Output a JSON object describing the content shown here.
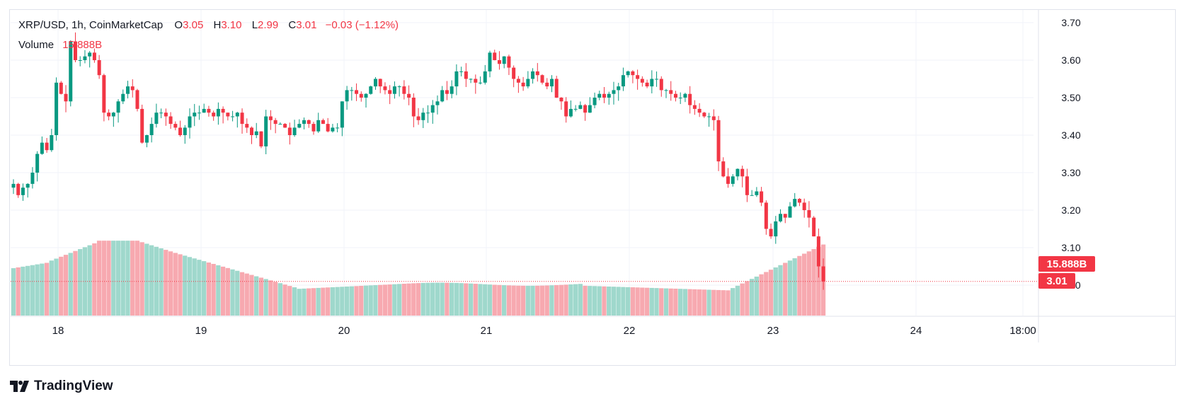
{
  "legend": {
    "symbol_line": "XRP/USD, 1h, CoinMarketCap",
    "open_key": "O",
    "open": "3.05",
    "high_key": "H",
    "high": "3.10",
    "low_key": "L",
    "low": "2.99",
    "close_key": "C",
    "close": "3.01",
    "change": "−0.03 (−1.12%)",
    "volume_label": "Volume",
    "volume_value": "15.888B"
  },
  "price_tag": {
    "volume": "15.888B",
    "price": "3.01"
  },
  "footer": {
    "brand": "TradingView"
  },
  "colors": {
    "up": "#089981",
    "down": "#f23645",
    "up_vol": "#9fd8cc",
    "down_vol": "#f7a9b0",
    "grid": "#f0f3fa"
  },
  "chart_data": {
    "type": "candlestick",
    "interval": "1h",
    "symbol": "XRP/USD",
    "y_ticks": [
      "3.70",
      "3.60",
      "3.50",
      "3.40",
      "3.30",
      "3.20",
      "3.10",
      "3.00"
    ],
    "x_ticks": [
      "18",
      "19",
      "20",
      "21",
      "22",
      "23",
      "24",
      "18:00"
    ],
    "ylim": [
      2.97,
      3.72
    ],
    "closes": [
      3.27,
      3.24,
      3.26,
      3.27,
      3.3,
      3.35,
      3.38,
      3.36,
      3.4,
      3.54,
      3.51,
      3.49,
      3.65,
      3.6,
      3.6,
      3.61,
      3.62,
      3.6,
      3.56,
      3.46,
      3.45,
      3.46,
      3.49,
      3.51,
      3.53,
      3.52,
      3.47,
      3.38,
      3.4,
      3.43,
      3.46,
      3.46,
      3.45,
      3.43,
      3.42,
      3.4,
      3.42,
      3.45,
      3.46,
      3.46,
      3.47,
      3.46,
      3.45,
      3.47,
      3.46,
      3.45,
      3.45,
      3.46,
      3.43,
      3.42,
      3.4,
      3.41,
      3.37,
      3.45,
      3.44,
      3.43,
      3.43,
      3.42,
      3.4,
      3.42,
      3.43,
      3.44,
      3.43,
      3.41,
      3.44,
      3.43,
      3.41,
      3.42,
      3.42,
      3.49,
      3.52,
      3.52,
      3.51,
      3.5,
      3.51,
      3.53,
      3.55,
      3.53,
      3.52,
      3.51,
      3.53,
      3.53,
      3.51,
      3.5,
      3.45,
      3.44,
      3.46,
      3.46,
      3.48,
      3.49,
      3.52,
      3.51,
      3.53,
      3.57,
      3.57,
      3.55,
      3.55,
      3.54,
      3.54,
      3.57,
      3.62,
      3.6,
      3.59,
      3.61,
      3.58,
      3.55,
      3.54,
      3.53,
      3.55,
      3.57,
      3.56,
      3.54,
      3.53,
      3.55,
      3.5,
      3.49,
      3.45,
      3.47,
      3.47,
      3.48,
      3.46,
      3.48,
      3.5,
      3.51,
      3.5,
      3.51,
      3.52,
      3.53,
      3.56,
      3.57,
      3.56,
      3.55,
      3.54,
      3.53,
      3.55,
      3.55,
      3.52,
      3.52,
      3.51,
      3.5,
      3.5,
      3.51,
      3.48,
      3.47,
      3.46,
      3.45,
      3.45,
      3.44,
      3.33,
      3.29,
      3.27,
      3.29,
      3.31,
      3.29,
      3.24,
      3.24,
      3.25,
      3.22,
      3.15,
      3.13,
      3.17,
      3.19,
      3.18,
      3.21,
      3.23,
      3.22,
      3.2,
      3.18,
      3.13,
      3.05,
      3.01
    ]
  }
}
